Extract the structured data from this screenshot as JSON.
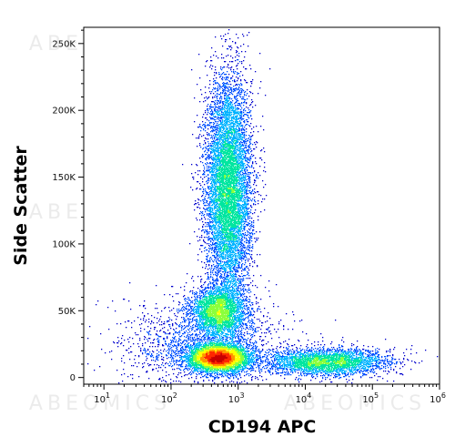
{
  "chart_data": {
    "type": "scatter",
    "subtype": "flow-cytometry density dot plot",
    "xlabel": "CD194 APC",
    "ylabel": "Side Scatter",
    "x_scale": "log",
    "xlim": [
      5,
      1000000
    ],
    "ylim": [
      -5000,
      262144
    ],
    "x_ticks": [
      {
        "value": 10,
        "base": "10",
        "exp": "1"
      },
      {
        "value": 100,
        "base": "10",
        "exp": "2"
      },
      {
        "value": 1000,
        "base": "10",
        "exp": "3"
      },
      {
        "value": 10000,
        "base": "10",
        "exp": "4"
      },
      {
        "value": 100000,
        "base": "10",
        "exp": "5"
      },
      {
        "value": 1000000,
        "base": "10",
        "exp": "6"
      }
    ],
    "y_ticks": [
      {
        "value": 0,
        "label": "0"
      },
      {
        "value": 50000,
        "label": "50K"
      },
      {
        "value": 100000,
        "label": "100K"
      },
      {
        "value": 150000,
        "label": "150K"
      },
      {
        "value": 200000,
        "label": "200K"
      },
      {
        "value": 250000,
        "label": "250K"
      }
    ],
    "populations": [
      {
        "center_x": 700,
        "center_y": 140000,
        "spread_log10_x": 0.17,
        "spread_y": 42000,
        "events": 9000
      },
      {
        "center_x": 500,
        "center_y": 50000,
        "spread_log10_x": 0.2,
        "spread_y": 9000,
        "events": 3200
      },
      {
        "center_x": 500,
        "center_y": 15000,
        "spread_log10_x": 0.22,
        "spread_y": 5000,
        "events": 6000
      },
      {
        "center_x": 20000,
        "center_y": 12000,
        "spread_log10_x": 0.45,
        "spread_y": 5000,
        "events": 3500
      },
      {
        "center_x": 300,
        "center_y": 25000,
        "spread_log10_x": 0.6,
        "spread_y": 16000,
        "events": 1800
      }
    ],
    "density_colors": [
      "#0000cc",
      "#0050ff",
      "#00b4ff",
      "#00e6a0",
      "#8cff3c",
      "#ffff00",
      "#ff9600",
      "#ff2800",
      "#c80000"
    ],
    "grid": false,
    "legend": "none",
    "watermark": "ABEOMICS"
  }
}
